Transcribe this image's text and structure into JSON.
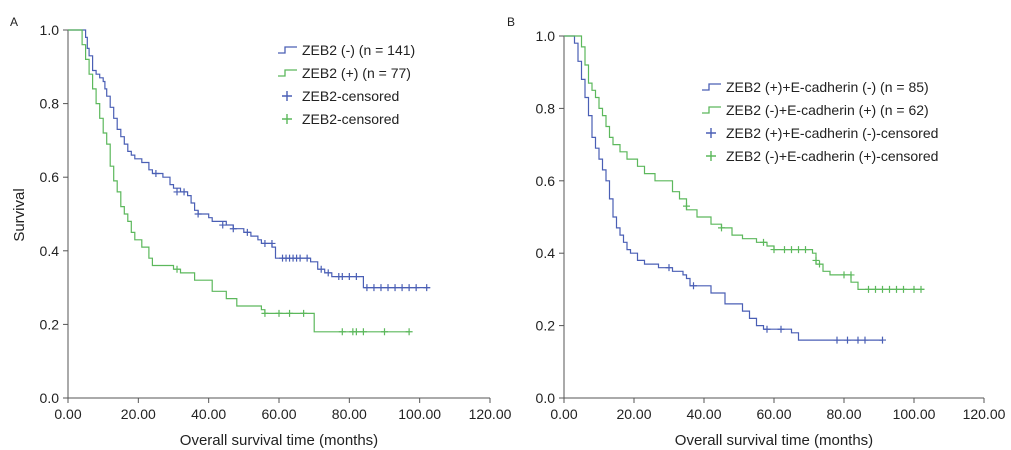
{
  "chart_data": [
    {
      "type": "line",
      "panel_label": "A",
      "xlabel": "Overall survival time (months)",
      "ylabel": "Survival",
      "xlim": [
        0,
        120
      ],
      "ylim": [
        0,
        1
      ],
      "xticks": [
        "0.00",
        "20.00",
        "40.00",
        "60.00",
        "80.00",
        "100.00",
        "120.00"
      ],
      "yticks": [
        "0.0",
        "0.2",
        "0.4",
        "0.6",
        "0.8",
        "1.0"
      ],
      "grid": false,
      "legend_position": "top-right",
      "legend": [
        {
          "label": "ZEB2 (-) (n = 141)",
          "color": "#4a5fb5",
          "kind": "line"
        },
        {
          "label": "ZEB2 (+) (n = 77)",
          "color": "#5cb85c",
          "kind": "line"
        },
        {
          "label": "ZEB2-censored",
          "color": "#4a5fb5",
          "kind": "plus"
        },
        {
          "label": "ZEB2-censored",
          "color": "#5cb85c",
          "kind": "plus"
        }
      ],
      "series": [
        {
          "color": "#4a5fb5",
          "steps": [
            [
              0,
              1.0
            ],
            [
              4,
              1.0
            ],
            [
              5,
              0.98
            ],
            [
              5.5,
              0.95
            ],
            [
              6,
              0.93
            ],
            [
              7,
              0.89
            ],
            [
              8,
              0.88
            ],
            [
              9,
              0.87
            ],
            [
              10,
              0.86
            ],
            [
              10.5,
              0.84
            ],
            [
              11,
              0.82
            ],
            [
              12,
              0.79
            ],
            [
              13,
              0.76
            ],
            [
              14,
              0.73
            ],
            [
              15,
              0.71
            ],
            [
              16,
              0.69
            ],
            [
              17,
              0.67
            ],
            [
              18,
              0.66
            ],
            [
              19,
              0.65
            ],
            [
              21,
              0.64
            ],
            [
              23,
              0.62
            ],
            [
              24,
              0.61
            ],
            [
              27,
              0.6
            ],
            [
              29,
              0.58
            ],
            [
              30,
              0.57
            ],
            [
              32,
              0.56
            ],
            [
              34,
              0.55
            ],
            [
              35,
              0.53
            ],
            [
              36,
              0.51
            ],
            [
              37,
              0.5
            ],
            [
              40,
              0.49
            ],
            [
              41,
              0.48
            ],
            [
              45,
              0.47
            ],
            [
              47,
              0.46
            ],
            [
              50,
              0.45
            ],
            [
              52,
              0.44
            ],
            [
              54,
              0.43
            ],
            [
              55,
              0.42
            ],
            [
              58,
              0.41
            ],
            [
              59,
              0.38
            ],
            [
              69,
              0.37
            ],
            [
              71,
              0.35
            ],
            [
              73,
              0.34
            ],
            [
              75,
              0.33
            ],
            [
              84,
              0.3
            ],
            [
              103,
              0.3
            ]
          ],
          "censored": [
            [
              25,
              0.61
            ],
            [
              31,
              0.56
            ],
            [
              33,
              0.56
            ],
            [
              37,
              0.5
            ],
            [
              44,
              0.47
            ],
            [
              47,
              0.46
            ],
            [
              51,
              0.45
            ],
            [
              56,
              0.42
            ],
            [
              58,
              0.42
            ],
            [
              61,
              0.38
            ],
            [
              62,
              0.38
            ],
            [
              63,
              0.38
            ],
            [
              64,
              0.38
            ],
            [
              65,
              0.38
            ],
            [
              66,
              0.38
            ],
            [
              68,
              0.38
            ],
            [
              72,
              0.35
            ],
            [
              74,
              0.34
            ],
            [
              77,
              0.33
            ],
            [
              78,
              0.33
            ],
            [
              80,
              0.33
            ],
            [
              82,
              0.33
            ],
            [
              85,
              0.3
            ],
            [
              87,
              0.3
            ],
            [
              89,
              0.3
            ],
            [
              91,
              0.3
            ],
            [
              93,
              0.3
            ],
            [
              95,
              0.3
            ],
            [
              97,
              0.3
            ],
            [
              99,
              0.3
            ],
            [
              102,
              0.3
            ]
          ]
        },
        {
          "color": "#5cb85c",
          "steps": [
            [
              0,
              1.0
            ],
            [
              3,
              1.0
            ],
            [
              4,
              0.96
            ],
            [
              5,
              0.92
            ],
            [
              6,
              0.88
            ],
            [
              7,
              0.84
            ],
            [
              8,
              0.8
            ],
            [
              9,
              0.76
            ],
            [
              10,
              0.72
            ],
            [
              11,
              0.69
            ],
            [
              12,
              0.63
            ],
            [
              13,
              0.59
            ],
            [
              14,
              0.56
            ],
            [
              15,
              0.52
            ],
            [
              16,
              0.5
            ],
            [
              17,
              0.48
            ],
            [
              18,
              0.45
            ],
            [
              19,
              0.43
            ],
            [
              21,
              0.41
            ],
            [
              23,
              0.38
            ],
            [
              24,
              0.36
            ],
            [
              30,
              0.35
            ],
            [
              32,
              0.34
            ],
            [
              36,
              0.32
            ],
            [
              41,
              0.29
            ],
            [
              45,
              0.27
            ],
            [
              48,
              0.25
            ],
            [
              55,
              0.24
            ],
            [
              56,
              0.23
            ],
            [
              70,
              0.18
            ],
            [
              97,
              0.18
            ]
          ],
          "censored": [
            [
              31,
              0.35
            ],
            [
              56,
              0.23
            ],
            [
              60,
              0.23
            ],
            [
              63,
              0.23
            ],
            [
              67,
              0.23
            ],
            [
              78,
              0.18
            ],
            [
              81,
              0.18
            ],
            [
              82,
              0.18
            ],
            [
              84,
              0.18
            ],
            [
              90,
              0.18
            ],
            [
              97,
              0.18
            ]
          ]
        }
      ]
    },
    {
      "type": "line",
      "panel_label": "B",
      "xlabel": "Overall survival time (months)",
      "ylabel": "",
      "xlim": [
        0,
        120
      ],
      "ylim": [
        0,
        1
      ],
      "xticks": [
        "0.00",
        "20.00",
        "40.00",
        "60.00",
        "80.00",
        "100.00",
        "120.00"
      ],
      "yticks": [
        "0.0",
        "0.2",
        "0.4",
        "0.6",
        "0.8",
        "1.0"
      ],
      "grid": false,
      "legend_position": "top-right",
      "legend": [
        {
          "label": "ZEB2 (+)+E-cadherin (-) (n = 85)",
          "color": "#4a5fb5",
          "kind": "line"
        },
        {
          "label": "ZEB2 (-)+E-cadherin (+) (n = 62)",
          "color": "#5cb85c",
          "kind": "line"
        },
        {
          "label": "ZEB2 (+)+E-cadherin (-)-censored",
          "color": "#4a5fb5",
          "kind": "plus"
        },
        {
          "label": "ZEB2 (-)+E-cadherin (+)-censored",
          "color": "#5cb85c",
          "kind": "plus"
        }
      ],
      "series": [
        {
          "color": "#4a5fb5",
          "steps": [
            [
              0,
              1.0
            ],
            [
              3,
              0.98
            ],
            [
              4,
              0.93
            ],
            [
              5,
              0.88
            ],
            [
              6,
              0.83
            ],
            [
              7,
              0.78
            ],
            [
              8,
              0.72
            ],
            [
              9,
              0.69
            ],
            [
              10,
              0.66
            ],
            [
              11,
              0.63
            ],
            [
              12,
              0.6
            ],
            [
              13,
              0.55
            ],
            [
              14,
              0.5
            ],
            [
              15,
              0.47
            ],
            [
              16,
              0.45
            ],
            [
              17,
              0.43
            ],
            [
              18,
              0.41
            ],
            [
              19,
              0.4
            ],
            [
              21,
              0.38
            ],
            [
              23,
              0.37
            ],
            [
              27,
              0.36
            ],
            [
              31,
              0.35
            ],
            [
              34,
              0.34
            ],
            [
              35,
              0.33
            ],
            [
              36,
              0.31
            ],
            [
              42,
              0.29
            ],
            [
              46,
              0.26
            ],
            [
              51,
              0.24
            ],
            [
              53,
              0.22
            ],
            [
              55,
              0.2
            ],
            [
              57,
              0.19
            ],
            [
              65,
              0.18
            ],
            [
              67,
              0.16
            ],
            [
              91,
              0.16
            ]
          ],
          "censored": [
            [
              30,
              0.36
            ],
            [
              37,
              0.31
            ],
            [
              58,
              0.19
            ],
            [
              62,
              0.19
            ],
            [
              78,
              0.16
            ],
            [
              81,
              0.16
            ],
            [
              84,
              0.16
            ],
            [
              86,
              0.16
            ],
            [
              91,
              0.16
            ]
          ]
        },
        {
          "color": "#5cb85c",
          "steps": [
            [
              0,
              1.0
            ],
            [
              4,
              1.0
            ],
            [
              5,
              0.97
            ],
            [
              6,
              0.92
            ],
            [
              7,
              0.87
            ],
            [
              8,
              0.85
            ],
            [
              9,
              0.83
            ],
            [
              10,
              0.8
            ],
            [
              11,
              0.78
            ],
            [
              12,
              0.75
            ],
            [
              13,
              0.72
            ],
            [
              14,
              0.7
            ],
            [
              16,
              0.68
            ],
            [
              18,
              0.66
            ],
            [
              21,
              0.64
            ],
            [
              23,
              0.62
            ],
            [
              26,
              0.6
            ],
            [
              31,
              0.57
            ],
            [
              33,
              0.55
            ],
            [
              35,
              0.52
            ],
            [
              38,
              0.5
            ],
            [
              42,
              0.48
            ],
            [
              45,
              0.47
            ],
            [
              48,
              0.45
            ],
            [
              51,
              0.44
            ],
            [
              55,
              0.43
            ],
            [
              58,
              0.42
            ],
            [
              60,
              0.41
            ],
            [
              71,
              0.4
            ],
            [
              72,
              0.37
            ],
            [
              74,
              0.35
            ],
            [
              76,
              0.34
            ],
            [
              80,
              0.34
            ],
            [
              82,
              0.32
            ],
            [
              84,
              0.3
            ],
            [
              103,
              0.3
            ]
          ],
          "censored": [
            [
              35,
              0.53
            ],
            [
              45,
              0.47
            ],
            [
              57,
              0.43
            ],
            [
              60,
              0.41
            ],
            [
              63,
              0.41
            ],
            [
              65,
              0.41
            ],
            [
              67,
              0.41
            ],
            [
              69,
              0.41
            ],
            [
              72,
              0.38
            ],
            [
              73,
              0.37
            ],
            [
              80,
              0.34
            ],
            [
              82,
              0.34
            ],
            [
              87,
              0.3
            ],
            [
              89,
              0.3
            ],
            [
              91,
              0.3
            ],
            [
              93,
              0.3
            ],
            [
              95,
              0.3
            ],
            [
              97,
              0.3
            ],
            [
              100,
              0.3
            ],
            [
              102,
              0.3
            ]
          ]
        }
      ]
    }
  ]
}
